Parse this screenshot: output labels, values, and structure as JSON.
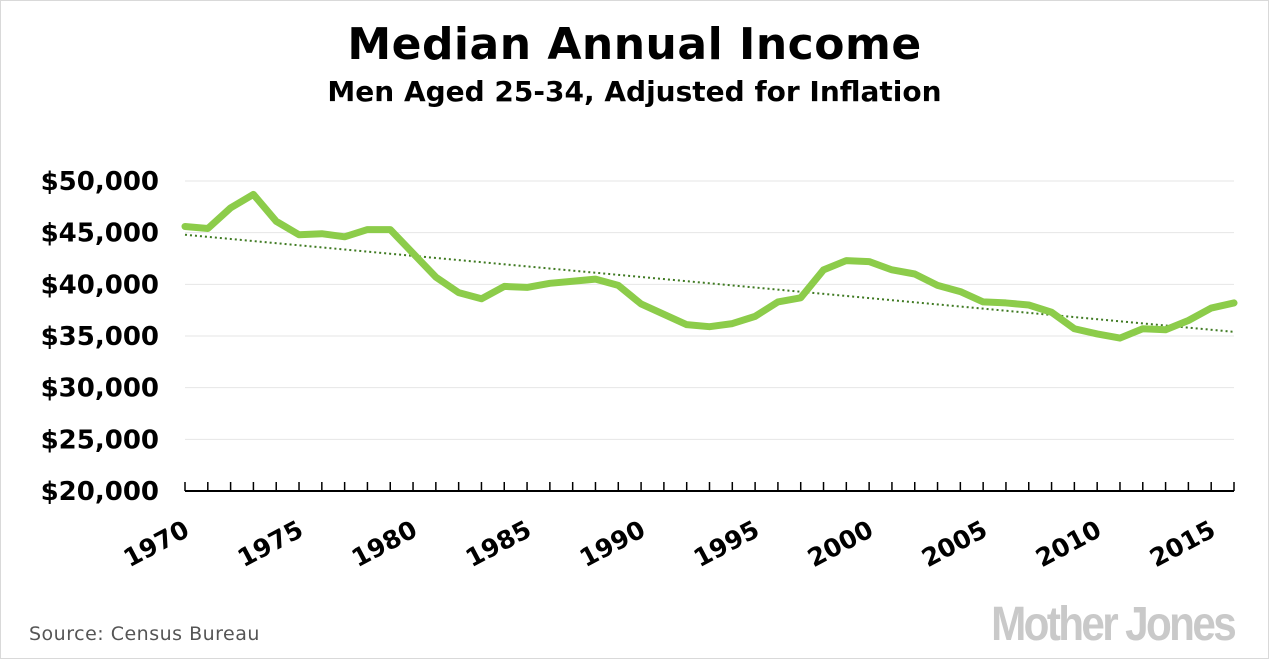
{
  "chart_data": {
    "type": "line",
    "title": "Median Annual Income",
    "subtitle": "Men Aged 25-34, Adjusted for Inflation",
    "xlabel": "",
    "ylabel": "",
    "x": [
      1970,
      1971,
      1972,
      1973,
      1974,
      1975,
      1976,
      1977,
      1978,
      1979,
      1980,
      1981,
      1982,
      1983,
      1984,
      1985,
      1986,
      1987,
      1988,
      1989,
      1990,
      1991,
      1992,
      1993,
      1994,
      1995,
      1996,
      1997,
      1998,
      1999,
      2000,
      2001,
      2002,
      2003,
      2004,
      2005,
      2006,
      2007,
      2008,
      2009,
      2010,
      2011,
      2012,
      2013,
      2014,
      2015,
      2016
    ],
    "series": [
      {
        "values": [
          45600,
          45400,
          47400,
          48700,
          46100,
          44800,
          44900,
          44600,
          45300,
          45300,
          43000,
          40700,
          39200,
          38600,
          39800,
          39700,
          40100,
          40300,
          40500,
          39900,
          38100,
          37100,
          36100,
          35900,
          36200,
          36900,
          38300,
          38700,
          41400,
          42300,
          42200,
          41400,
          41000,
          39900,
          39300,
          38300,
          38200,
          38000,
          37300,
          35700,
          35200,
          34800,
          35700,
          35600,
          36500,
          37700,
          38200
        ]
      }
    ],
    "trendline": {
      "style": "dotted",
      "start": [
        1970,
        44800
      ],
      "end": [
        2016,
        35400
      ]
    },
    "ylim": [
      20000,
      50000
    ],
    "yticks": [
      20000,
      25000,
      30000,
      35000,
      40000,
      45000,
      50000
    ],
    "ytick_labels": [
      "$20,000",
      "$25,000",
      "$30,000",
      "$35,000",
      "$40,000",
      "$45,000",
      "$50,000"
    ],
    "xlim": [
      1970,
      2016
    ],
    "xticks": [
      1970,
      1975,
      1980,
      1985,
      1990,
      1995,
      2000,
      2005,
      2010,
      2015
    ],
    "xtick_labels": [
      "1970",
      "1975",
      "1980",
      "1985",
      "1990",
      "1995",
      "2000",
      "2005",
      "2010",
      "2015"
    ],
    "grid": true,
    "legend": "none",
    "colors": {
      "line": "#8ccc4a",
      "trend": "#3f7a22",
      "grid": "#e6e6e6",
      "axis": "#000000"
    }
  },
  "source": "Source:  Census Bureau",
  "logo": "Mother Jones"
}
